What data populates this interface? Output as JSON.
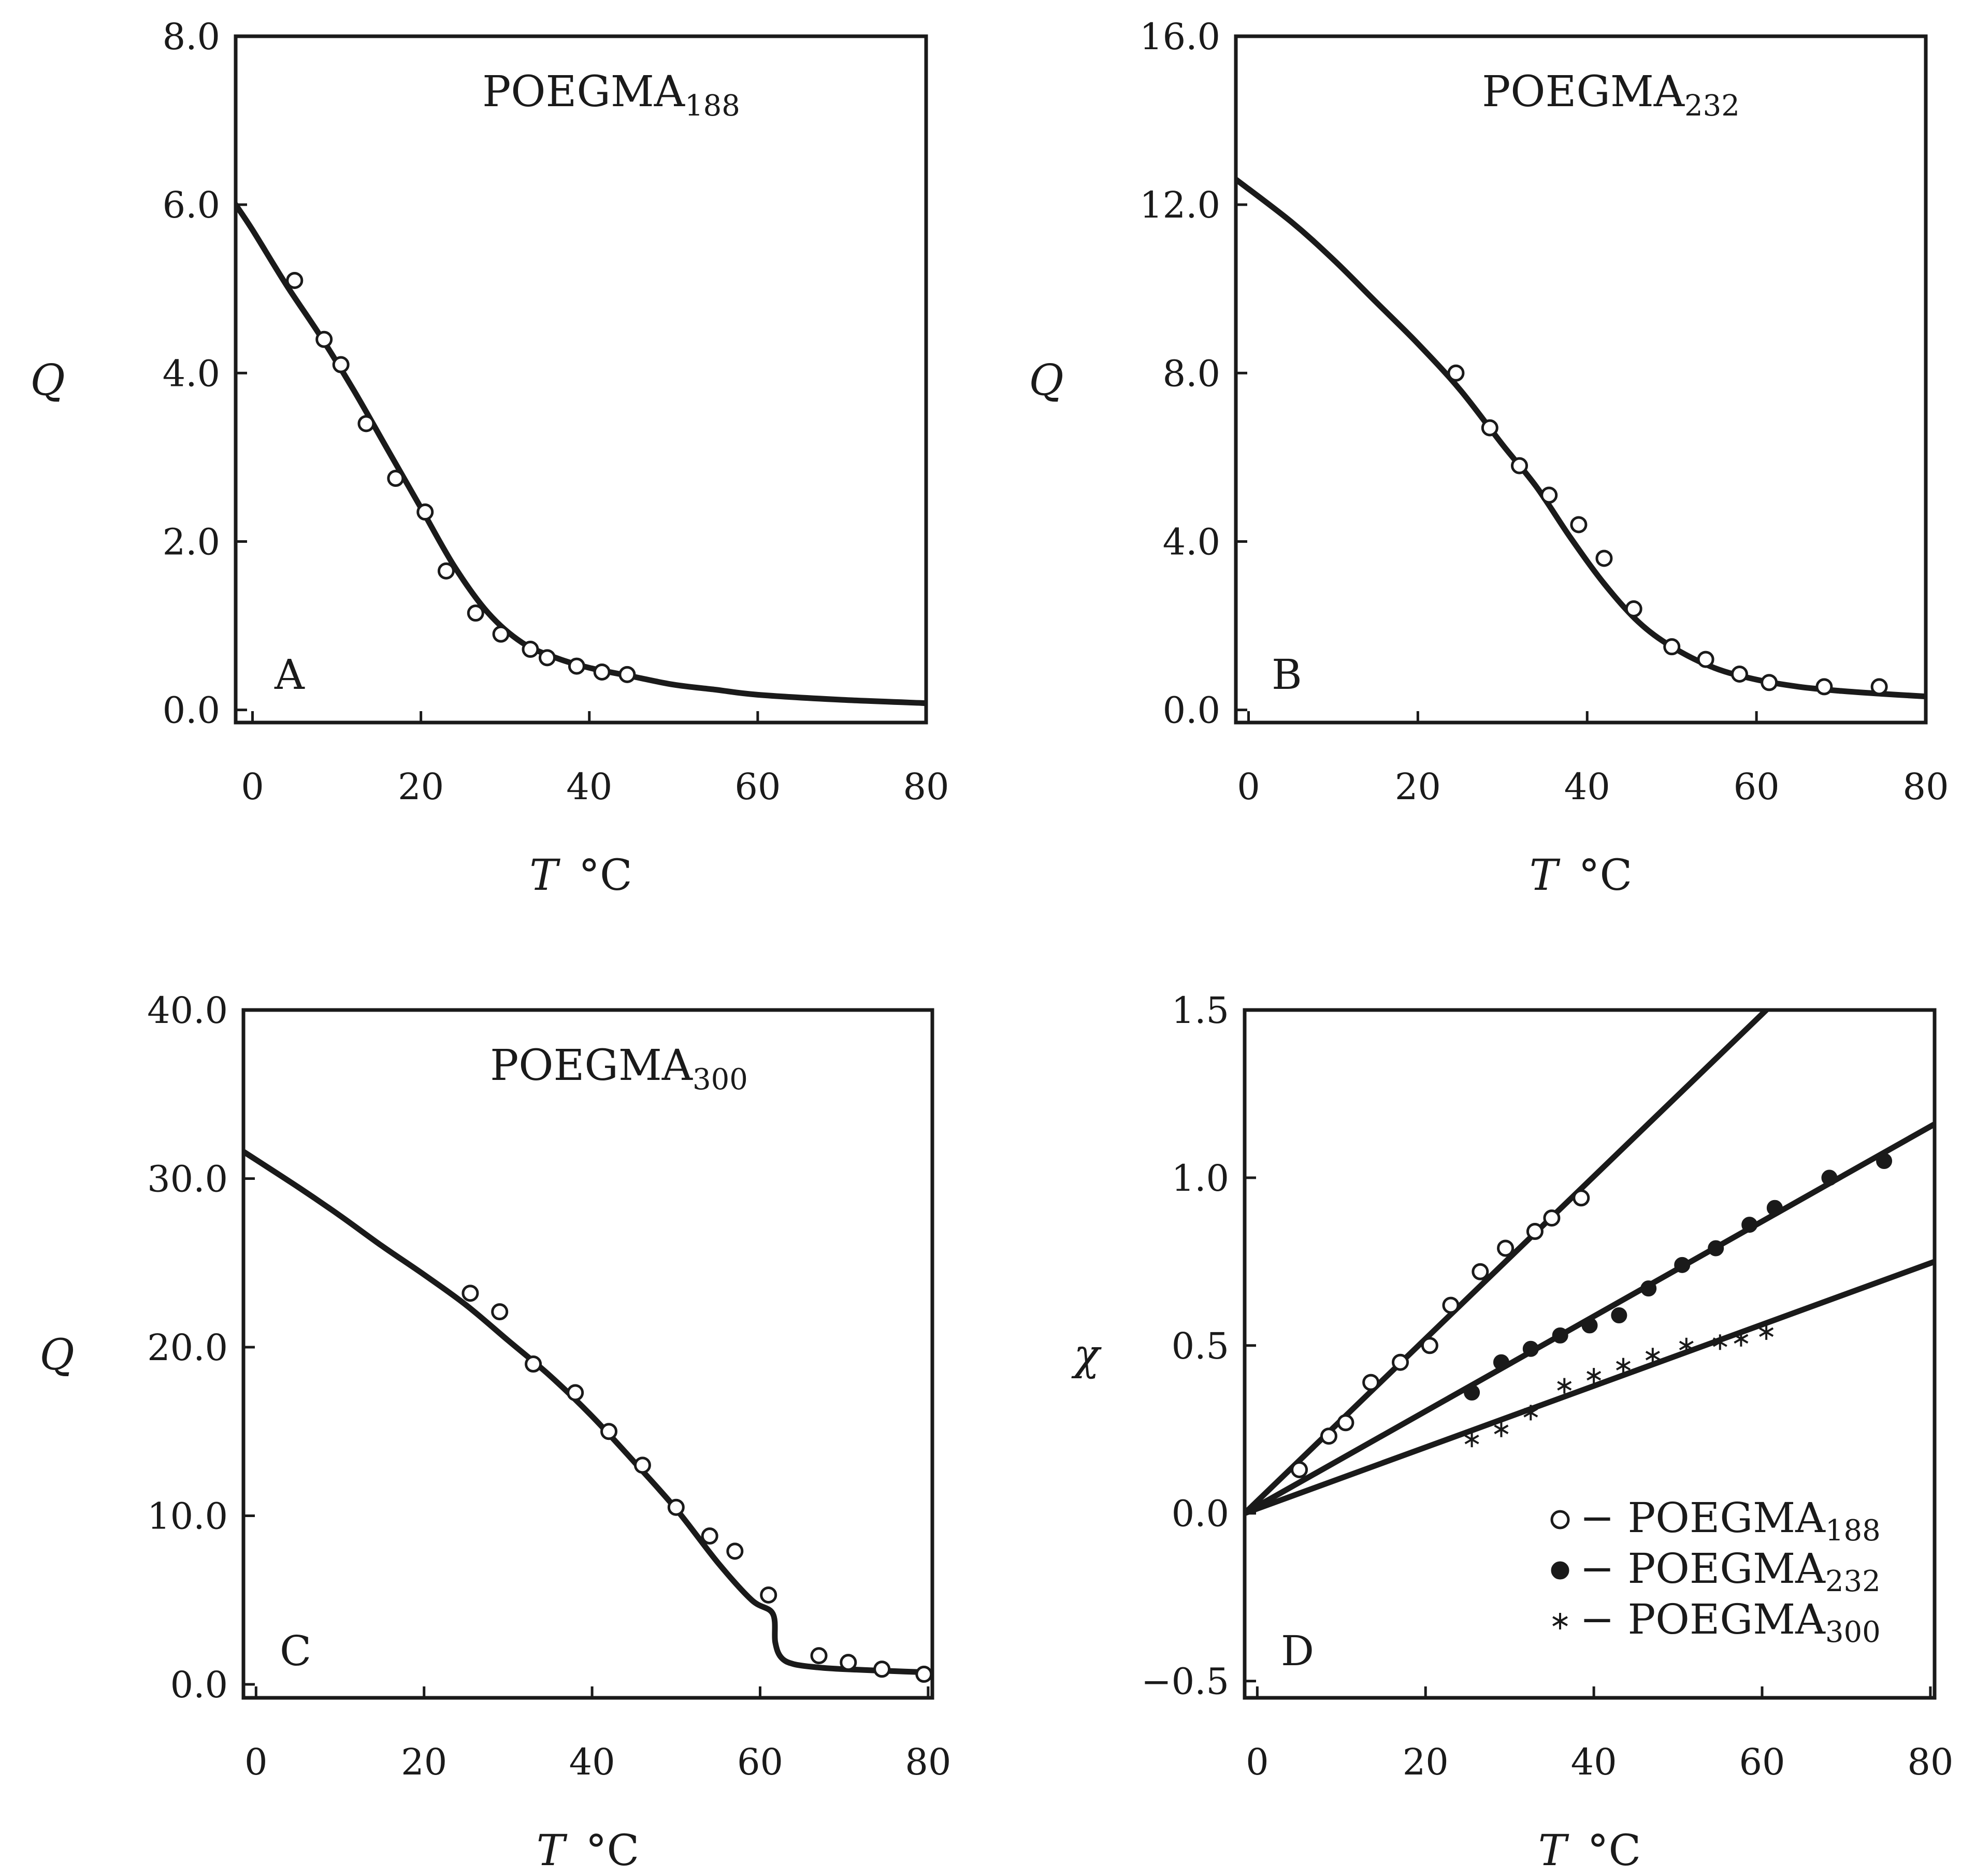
{
  "figure": {
    "title": ""
  },
  "chart_data": [
    {
      "id": "A",
      "type": "line",
      "panel_label": "A",
      "title_main": "POEGMA",
      "title_sub": "188",
      "xlabel": "T",
      "xunit": "°C",
      "ylabel": "Q",
      "xlim": [
        -2,
        80
      ],
      "ylim": [
        -0.15,
        8.0
      ],
      "xticks": [
        0,
        20,
        40,
        60,
        80
      ],
      "xtick_labels": [
        "0",
        "20",
        "40",
        "60",
        "80"
      ],
      "yticks": [
        0,
        2,
        4,
        6,
        8
      ],
      "ytick_labels": [
        "0.0",
        "2.0",
        "4.0",
        "6.0",
        "8.0"
      ],
      "series": [
        {
          "name": "fit",
          "kind": "line",
          "x": [
            -2,
            0,
            4,
            8,
            12,
            16,
            20,
            24,
            28,
            32,
            36,
            40,
            45,
            50,
            55,
            60,
            70,
            80
          ],
          "y": [
            6.0,
            5.7,
            5.05,
            4.45,
            3.8,
            3.1,
            2.4,
            1.7,
            1.15,
            0.8,
            0.62,
            0.5,
            0.4,
            0.3,
            0.24,
            0.18,
            0.12,
            0.08
          ]
        },
        {
          "name": "data",
          "kind": "open",
          "x": [
            5,
            8.5,
            10.5,
            13.5,
            17,
            20.5,
            23,
            26.5,
            29.5,
            33,
            35,
            38.5,
            41.5,
            44.5
          ],
          "y": [
            5.1,
            4.4,
            4.1,
            3.4,
            2.75,
            2.35,
            1.65,
            1.15,
            0.9,
            0.72,
            0.62,
            0.52,
            0.45,
            0.42
          ]
        }
      ]
    },
    {
      "id": "B",
      "type": "line",
      "panel_label": "B",
      "title_main": "POEGMA",
      "title_sub": "232",
      "xlabel": "T",
      "xunit": "°C",
      "ylabel": "Q",
      "xlim": [
        -1.5,
        80
      ],
      "ylim": [
        -0.3,
        16.0
      ],
      "xticks": [
        0,
        20,
        40,
        60,
        80
      ],
      "xtick_labels": [
        "0",
        "20",
        "40",
        "60",
        "80"
      ],
      "yticks": [
        0,
        4,
        8,
        12,
        16
      ],
      "ytick_labels": [
        "0.0",
        "4.0",
        "8.0",
        "12.0",
        "16.0"
      ],
      "series": [
        {
          "name": "fit",
          "kind": "line",
          "x": [
            -1.5,
            5,
            10,
            15,
            20,
            25,
            30,
            34,
            38,
            42,
            46,
            50,
            55,
            60,
            65,
            70,
            75,
            80
          ],
          "y": [
            12.6,
            11.6,
            10.7,
            9.7,
            8.7,
            7.6,
            6.3,
            5.3,
            4.1,
            3.0,
            2.1,
            1.5,
            1.0,
            0.72,
            0.55,
            0.45,
            0.38,
            0.32
          ]
        },
        {
          "name": "data",
          "kind": "open",
          "x": [
            24.5,
            28.5,
            32,
            35.5,
            39,
            42,
            45.5,
            50,
            54,
            58,
            61.5,
            68,
            74.5
          ],
          "y": [
            8.0,
            6.7,
            5.8,
            5.1,
            4.4,
            3.6,
            2.4,
            1.5,
            1.2,
            0.85,
            0.65,
            0.55,
            0.55
          ]
        }
      ]
    },
    {
      "id": "C",
      "type": "line",
      "panel_label": "C",
      "title_main": "POEGMA",
      "title_sub": "300",
      "xlabel": "T",
      "xunit": "°C",
      "ylabel": "Q",
      "xlim": [
        -1.5,
        80.5
      ],
      "ylim": [
        -0.8,
        40.0
      ],
      "xticks": [
        0,
        20,
        40,
        60,
        80
      ],
      "xtick_labels": [
        "0",
        "20",
        "40",
        "60",
        "80"
      ],
      "yticks": [
        0,
        10,
        20,
        30,
        40
      ],
      "ytick_labels": [
        "0.0",
        "10.0",
        "20.0",
        "30.0",
        "40.0"
      ],
      "series": [
        {
          "name": "fit",
          "kind": "line",
          "x": [
            -1.5,
            5,
            10,
            15,
            20,
            25,
            30,
            35,
            40,
            45,
            50,
            55,
            59,
            61.5,
            61.8,
            62.5,
            64,
            67,
            70,
            75,
            80.5
          ],
          "y": [
            31.6,
            29.5,
            27.8,
            26.0,
            24.3,
            22.5,
            20.4,
            18.3,
            15.9,
            13.2,
            10.4,
            7.2,
            5.0,
            4.2,
            2.5,
            1.6,
            1.2,
            1.0,
            0.9,
            0.8,
            0.7
          ]
        },
        {
          "name": "data",
          "kind": "open",
          "x": [
            25.5,
            29,
            33,
            38,
            42,
            46,
            50,
            54,
            57,
            61,
            67,
            70.5,
            74.5,
            79.5
          ],
          "y": [
            23.2,
            22.1,
            19.0,
            17.3,
            15.0,
            13.0,
            10.5,
            8.8,
            7.9,
            5.3,
            1.7,
            1.3,
            0.9,
            0.6
          ]
        }
      ]
    },
    {
      "id": "D",
      "type": "scatter",
      "panel_label": "D",
      "xlabel": "T",
      "xunit": "°C",
      "ylabel": "χ",
      "xlim": [
        -1.5,
        80.5
      ],
      "ylim": [
        -0.55,
        1.5
      ],
      "xticks": [
        0,
        20,
        40,
        60,
        80
      ],
      "xtick_labels": [
        "0",
        "20",
        "40",
        "60",
        "80"
      ],
      "yticks": [
        -0.5,
        0,
        0.5,
        1.0,
        1.5
      ],
      "ytick_labels": [
        "−0.5",
        "0.0",
        "0.5",
        "1.0",
        "1.5"
      ],
      "legend_position": "bottom-right",
      "series": [
        {
          "name": "fit POEGMA188",
          "kind": "line",
          "x": [
            -1.5,
            60.5
          ],
          "y": [
            0.0,
            1.5
          ]
        },
        {
          "name": "fit POEGMA232",
          "kind": "line",
          "x": [
            -1.5,
            80.5
          ],
          "y": [
            0.0,
            1.16
          ]
        },
        {
          "name": "fit POEGMA300",
          "kind": "line",
          "x": [
            -1.5,
            80.5
          ],
          "y": [
            0.0,
            0.75
          ]
        },
        {
          "name": "POEGMA188",
          "kind": "open",
          "x": [
            5,
            8.5,
            10.5,
            13.5,
            17,
            20.5,
            23,
            26.5,
            29.5,
            33,
            35,
            38.5
          ],
          "y": [
            0.13,
            0.23,
            0.27,
            0.39,
            0.45,
            0.5,
            0.62,
            0.72,
            0.79,
            0.84,
            0.88,
            0.94
          ]
        },
        {
          "name": "POEGMA232",
          "kind": "filled",
          "x": [
            25.5,
            29,
            32.5,
            36,
            39.5,
            43,
            46.5,
            50.5,
            54.5,
            58.5,
            61.5,
            68,
            74.5
          ],
          "y": [
            0.36,
            0.45,
            0.49,
            0.53,
            0.56,
            0.59,
            0.67,
            0.74,
            0.79,
            0.86,
            0.91,
            1.0,
            1.05
          ]
        },
        {
          "name": "POEGMA300",
          "kind": "star",
          "x": [
            25.5,
            29,
            32.5,
            36.5,
            40,
            43.5,
            47,
            51,
            55,
            57.5,
            60.5
          ],
          "y": [
            0.22,
            0.25,
            0.3,
            0.38,
            0.41,
            0.44,
            0.47,
            0.5,
            0.51,
            0.52,
            0.54
          ]
        }
      ],
      "legend": [
        {
          "symbol": "open",
          "text_main": "− POEGMA",
          "text_sub": "188"
        },
        {
          "symbol": "filled",
          "text_main": "− POEGMA",
          "text_sub": "232"
        },
        {
          "symbol": "star",
          "text_main": "− POEGMA",
          "text_sub": "300"
        }
      ]
    }
  ]
}
